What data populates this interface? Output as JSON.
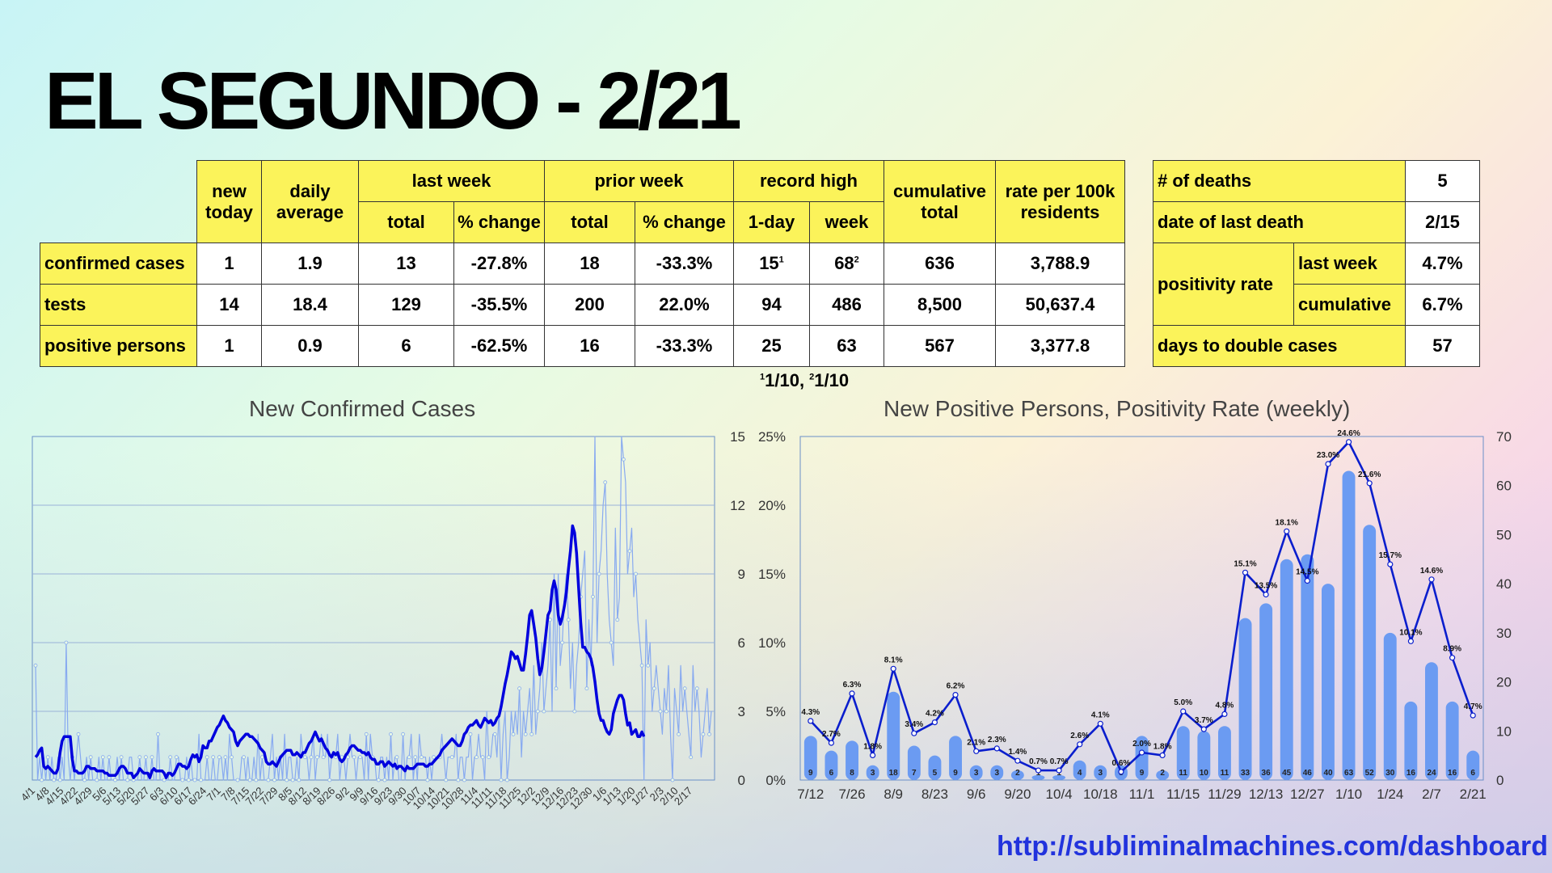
{
  "title": "EL SEGUNDO - 2/21",
  "main_table": {
    "headers": {
      "new_today": "new today",
      "daily_average": "daily average",
      "last_week": "last week",
      "prior_week": "prior week",
      "record_high": "record high",
      "cumulative_total": "cumulative total",
      "rate": "rate per 100k residents",
      "total": "total",
      "pct_change": "% change",
      "one_day": "1-day",
      "week": "week"
    },
    "rows": [
      {
        "label": "confirmed cases",
        "new_today": "1",
        "daily_avg": "1.9",
        "lw_total": "13",
        "lw_change": "-27.8%",
        "pw_total": "18",
        "pw_change": "-33.3%",
        "rec_day": "15",
        "rec_day_sup": "1",
        "rec_week": "68",
        "rec_week_sup": "2",
        "cumulative": "636",
        "rate": "3,788.9"
      },
      {
        "label": "tests",
        "new_today": "14",
        "daily_avg": "18.4",
        "lw_total": "129",
        "lw_change": "-35.5%",
        "pw_total": "200",
        "pw_change": "22.0%",
        "rec_day": "94",
        "rec_day_sup": "",
        "rec_week": "486",
        "rec_week_sup": "",
        "cumulative": "8,500",
        "rate": "50,637.4"
      },
      {
        "label": "positive persons",
        "new_today": "1",
        "daily_avg": "0.9",
        "lw_total": "6",
        "lw_change": "-62.5%",
        "pw_total": "16",
        "pw_change": "-33.3%",
        "rec_day": "25",
        "rec_day_sup": "",
        "rec_week": "63",
        "rec_week_sup": "",
        "cumulative": "567",
        "rate": "3,377.8"
      }
    ]
  },
  "side_table": {
    "deaths_label": "# of deaths",
    "deaths": "5",
    "last_death_label": "date of last death",
    "last_death": "2/15",
    "positivity_label": "positivity rate",
    "last_week_label": "last week",
    "last_week": "4.7%",
    "cumulative_label": "cumulative",
    "cumulative": "6.7%",
    "double_label": "days to double cases",
    "double": "57"
  },
  "footnote": {
    "sup1": "1",
    "text1": "1/10, ",
    "sup2": "2",
    "text2": "1/10"
  },
  "url": "http://subliminalmachines.com/dashboard",
  "chart_data": [
    {
      "type": "line",
      "title": "New Confirmed Cases",
      "ylim": [
        0,
        15
      ],
      "yticks": [
        0,
        3,
        6,
        9,
        12,
        15
      ],
      "x_start": "4/1",
      "x_ticks": [
        "4/1",
        "4/8",
        "4/15",
        "4/22",
        "4/29",
        "5/6",
        "5/13",
        "5/20",
        "5/27",
        "6/3",
        "6/10",
        "6/17",
        "6/24",
        "7/1",
        "7/8",
        "7/15",
        "7/22",
        "7/29",
        "8/5",
        "8/12",
        "8/19",
        "8/26",
        "9/2",
        "9/9",
        "9/16",
        "9/23",
        "9/30",
        "10/7",
        "10/14",
        "10/21",
        "10/28",
        "11/4",
        "11/11",
        "11/18",
        "11/25",
        "12/2",
        "12/9",
        "12/16",
        "12/23",
        "12/30",
        "1/6",
        "1/13",
        "1/20",
        "1/27",
        "2/3",
        "2/10",
        "2/17"
      ],
      "series": [
        {
          "color": "#88aaf0",
          "values": [
            5,
            0,
            1,
            0,
            1,
            0,
            1,
            0,
            1,
            0,
            0,
            1,
            0,
            1,
            0,
            6,
            1,
            0,
            1,
            0,
            1,
            2,
            1,
            0,
            0,
            1,
            0,
            1,
            0,
            0,
            0,
            1,
            0,
            1,
            0,
            0,
            1,
            0,
            0,
            0,
            1,
            0,
            1,
            0,
            0,
            0,
            1,
            1,
            0,
            0,
            0,
            1,
            0,
            0,
            1,
            0,
            0,
            1,
            0,
            0,
            2,
            0,
            0,
            0,
            0,
            0,
            1,
            0,
            0,
            1,
            1,
            0,
            0,
            0,
            1,
            0,
            1,
            0,
            0,
            0,
            2,
            0,
            0,
            0,
            1,
            0,
            0,
            1,
            0,
            0,
            1,
            1,
            0,
            1,
            0,
            2,
            1,
            0,
            0,
            0,
            0,
            1,
            1,
            0,
            1,
            0,
            0,
            1,
            0,
            2,
            0,
            1,
            0,
            0,
            0,
            1,
            2,
            0,
            1,
            0,
            1,
            0,
            2,
            0,
            1,
            1,
            0,
            0,
            1,
            0,
            2,
            1,
            1,
            1,
            0,
            1,
            2,
            0,
            1,
            1,
            2,
            1,
            1,
            2,
            0,
            1,
            1,
            1,
            2,
            0,
            1,
            1,
            0,
            1,
            2,
            1,
            1,
            0,
            1,
            1,
            1,
            0,
            2,
            0,
            2,
            1,
            1,
            0,
            0,
            1,
            1,
            0,
            1,
            0,
            2,
            0,
            1,
            1,
            0,
            0,
            2,
            0,
            1,
            1,
            2,
            0,
            1,
            0,
            2,
            1,
            1,
            1,
            0,
            1,
            0,
            1,
            1,
            1,
            1,
            2,
            1,
            0,
            1,
            1,
            1,
            1,
            2,
            0,
            1,
            1,
            0,
            1,
            1,
            2,
            0,
            1,
            1,
            2,
            1,
            1,
            0,
            3,
            1,
            1,
            2,
            2,
            1,
            3,
            0,
            2,
            3,
            0,
            1,
            3,
            2,
            3,
            2,
            4,
            1,
            3,
            2,
            3,
            4,
            2,
            5,
            2,
            3,
            4,
            6,
            3,
            4,
            5,
            7,
            3,
            9,
            4,
            9,
            5,
            6,
            8,
            9,
            7,
            4,
            6,
            3,
            5,
            6,
            8,
            9,
            10,
            4,
            7,
            5,
            8,
            15,
            6,
            9,
            10,
            12,
            13,
            9,
            7,
            6,
            5,
            11,
            7,
            8,
            15,
            14,
            13,
            9,
            10,
            11,
            8,
            9,
            7,
            6,
            5,
            0,
            7,
            5,
            6,
            3,
            4,
            5,
            4,
            3,
            2,
            4,
            3,
            5,
            2,
            0,
            4,
            3,
            2,
            5,
            3,
            4,
            3,
            2,
            1,
            5,
            3,
            4,
            3,
            1,
            2,
            3,
            4,
            2,
            3
          ]
        },
        {
          "color": "#0000dd",
          "values": [
            1.0,
            1.1,
            1.3,
            1.4,
            0.6,
            0.5,
            0.6,
            0.5,
            0.4,
            0.3,
            0.3,
            0.5,
            1.2,
            1.7,
            1.9,
            1.9,
            1.9,
            1.9,
            0.9,
            0.4,
            0.4,
            0.3,
            0.3,
            0.3,
            0.4,
            0.6,
            0.6,
            0.5,
            0.5,
            0.5,
            0.4,
            0.4,
            0.4,
            0.4,
            0.3,
            0.3,
            0.2,
            0.2,
            0.2,
            0.2,
            0.3,
            0.5,
            0.6,
            0.6,
            0.5,
            0.3,
            0.3,
            0.3,
            0.1,
            0.2,
            0.3,
            0.5,
            0.4,
            0.3,
            0.3,
            0.3,
            0.1,
            0.4,
            0.5,
            0.4,
            0.4,
            0.4,
            0.4,
            0.3,
            0.1,
            0.3,
            0.3,
            0.2,
            0.3,
            0.5,
            0.7,
            0.7,
            0.6,
            0.6,
            0.5,
            0.6,
            0.9,
            1.1,
            1.0,
            1.1,
            0.8,
            1.0,
            1.5,
            1.4,
            1.4,
            1.7,
            1.7,
            1.9,
            2.1,
            2.3,
            2.4,
            2.6,
            2.8,
            2.6,
            2.5,
            2.3,
            2.2,
            2.1,
            1.7,
            1.5,
            1.7,
            1.8,
            1.9,
            2.0,
            2.0,
            1.9,
            1.9,
            1.8,
            1.7,
            1.6,
            1.4,
            1.3,
            1.2,
            0.8,
            0.7,
            0.7,
            0.8,
            0.7,
            0.6,
            0.8,
            1.0,
            1.1,
            1.2,
            1.3,
            1.3,
            1.3,
            1.1,
            1.1,
            1.2,
            1.1,
            1.0,
            1.2,
            1.2,
            1.4,
            1.6,
            1.7,
            1.9,
            2.1,
            1.9,
            1.7,
            1.8,
            1.6,
            1.4,
            1.3,
            1.1,
            1.0,
            1.2,
            1.1,
            1.2,
            0.9,
            0.8,
            0.9,
            1.1,
            1.2,
            1.4,
            1.5,
            1.5,
            1.4,
            1.3,
            1.3,
            1.2,
            1.2,
            1.1,
            1.2,
            1.0,
            0.9,
            0.9,
            0.7,
            0.7,
            0.8,
            0.8,
            0.6,
            0.7,
            0.8,
            0.7,
            0.6,
            0.7,
            0.5,
            0.6,
            0.6,
            0.5,
            0.4,
            0.6,
            0.5,
            0.5,
            0.5,
            0.6,
            0.7,
            0.7,
            0.7,
            0.7,
            0.6,
            0.6,
            0.7,
            0.7,
            0.8,
            0.9,
            1.0,
            1.1,
            1.3,
            1.4,
            1.5,
            1.6,
            1.7,
            1.8,
            1.7,
            1.6,
            1.5,
            1.5,
            1.7,
            2.0,
            2.1,
            2.3,
            2.4,
            2.4,
            2.5,
            2.6,
            2.4,
            2.3,
            2.5,
            2.7,
            2.6,
            2.5,
            2.6,
            2.4,
            2.5,
            2.7,
            2.8,
            3.2,
            3.7,
            4.2,
            4.6,
            5.1,
            5.6,
            5.5,
            5.3,
            5.4,
            5.1,
            4.8,
            4.8,
            5.5,
            6.3,
            7.2,
            7.4,
            6.8,
            6.2,
            5.3,
            4.6,
            4.9,
            5.6,
            6.4,
            7.2,
            7.4,
            8.3,
            8.7,
            8.3,
            7.2,
            6.8,
            7.1,
            7.6,
            8.2,
            9.2,
            10.0,
            11.1,
            10.8,
            9.9,
            8.4,
            6.9,
            5.8,
            5.8,
            5.6,
            5.5,
            5.3,
            4.9,
            4.3,
            3.5,
            2.9,
            2.6,
            2.6,
            2.3,
            2.1,
            2.0,
            2.2,
            2.9,
            3.2,
            3.5,
            3.7,
            3.7,
            3.5,
            2.9,
            2.4,
            2.5,
            2.0,
            2.1,
            2.2,
            1.9,
            1.9,
            2.1,
            1.9
          ]
        }
      ]
    },
    {
      "type": "bar+line",
      "title": "New Positive Persons, Positivity Rate (weekly)",
      "categories": [
        "7/12",
        "7/19",
        "7/26",
        "8/2",
        "8/9",
        "8/16",
        "8/23",
        "8/30",
        "9/6",
        "9/13",
        "9/20",
        "9/27",
        "10/4",
        "10/11",
        "10/18",
        "10/25",
        "11/1",
        "11/8",
        "11/15",
        "11/22",
        "11/29",
        "12/6",
        "12/13",
        "12/20",
        "12/27",
        "1/3",
        "1/10",
        "1/17",
        "1/24",
        "1/31",
        "2/7",
        "2/14",
        "2/21"
      ],
      "x_tick_labels": [
        "7/12",
        "7/26",
        "8/9",
        "8/23",
        "9/6",
        "9/20",
        "10/4",
        "10/18",
        "11/1",
        "11/15",
        "11/29",
        "12/13",
        "12/27",
        "1/10",
        "1/24",
        "2/7",
        "2/21"
      ],
      "bars": {
        "axis": "right",
        "ylim": [
          0,
          70
        ],
        "yticks": [
          0,
          10,
          20,
          30,
          40,
          50,
          60,
          70
        ],
        "color": "#6b9bf2",
        "values": [
          9,
          6,
          8,
          3,
          18,
          7,
          5,
          9,
          3,
          3,
          2,
          1,
          1,
          4,
          3,
          3,
          9,
          2,
          11,
          10,
          11,
          33,
          36,
          45,
          46,
          40,
          63,
          52,
          30,
          16,
          24,
          16,
          6
        ]
      },
      "line": {
        "axis": "left",
        "ylim": [
          0,
          25
        ],
        "yticks": [
          "0%",
          "5%",
          "10%",
          "15%",
          "20%",
          "25%"
        ],
        "color": "#0a1ecd",
        "values": [
          4.3,
          2.7,
          6.3,
          1.8,
          8.1,
          3.4,
          4.2,
          6.2,
          2.1,
          2.3,
          1.4,
          0.7,
          0.7,
          2.6,
          4.1,
          0.6,
          2.0,
          1.8,
          5.0,
          3.7,
          4.8,
          15.1,
          13.5,
          18.1,
          14.5,
          23.0,
          24.6,
          21.6,
          15.7,
          10.1,
          14.6,
          8.9,
          4.7
        ],
        "labels": [
          "4.3%",
          "2.7%",
          "6.3%",
          "1.8%",
          "8.1%",
          "3.4%",
          "4.2%",
          "6.2%",
          "2.1%",
          "2.3%",
          "1.4%",
          "0.7%",
          "0.7%",
          "2.6%",
          "4.1%",
          "0.6%",
          "2.0%",
          "1.8%",
          "5.0%",
          "3.7%",
          "4.8%",
          "15.1%",
          "13.5%",
          "18.1%",
          "14.5%",
          "23.0%",
          "24.6%",
          "21.6%",
          "15.7%",
          "10.1%",
          "14.6%",
          "8.9%",
          "4.7%"
        ]
      }
    }
  ]
}
